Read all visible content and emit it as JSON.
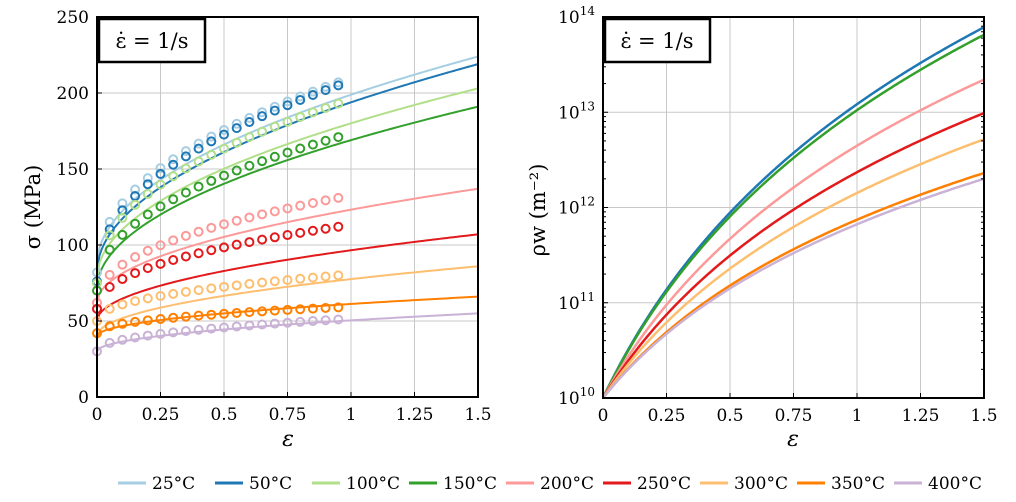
{
  "legend": {
    "entries": [
      {
        "label": "25°C",
        "color": "#a6cee3"
      },
      {
        "label": "50°C",
        "color": "#1f78b4"
      },
      {
        "label": "100°C",
        "color": "#b2df8a"
      },
      {
        "label": "150°C",
        "color": "#33a02c"
      },
      {
        "label": "200°C",
        "color": "#fb9a99"
      },
      {
        "label": "250°C",
        "color": "#e31a1c"
      },
      {
        "label": "300°C",
        "color": "#fdbf6f"
      },
      {
        "label": "350°C",
        "color": "#ff7f00"
      },
      {
        "label": "400°C",
        "color": "#cab2d6"
      }
    ]
  },
  "chart_data": [
    {
      "type": "line",
      "title": "",
      "annotation": "ε̇ = 1/s",
      "xlabel": "ε",
      "ylabel": "σ (MPa)",
      "xlim": [
        0,
        1.5
      ],
      "ylim": [
        0,
        250
      ],
      "xticks": [
        0,
        0.25,
        0.5,
        0.75,
        1,
        1.25,
        1.5
      ],
      "xtick_labels": [
        "0",
        "0.25",
        "0.5",
        "0.75",
        "1",
        "1.25",
        "1.5"
      ],
      "yticks": [
        0,
        50,
        100,
        150,
        200,
        250
      ],
      "ytick_labels": [
        "0",
        "50",
        "100",
        "150",
        "200",
        "250"
      ],
      "series": [
        {
          "name": "25°C",
          "color": "#a6cee3",
          "model": {
            "y0": 87,
            "y1": 224
          },
          "measured": {
            "y0": 82,
            "y1": 207
          }
        },
        {
          "name": "50°C",
          "color": "#1f78b4",
          "model": {
            "y0": 82,
            "y1": 219
          },
          "measured": {
            "y0": 76,
            "y1": 205
          }
        },
        {
          "name": "100°C",
          "color": "#b2df8a",
          "model": {
            "y0": 78,
            "y1": 203
          },
          "measured": {
            "y0": 75,
            "y1": 193
          }
        },
        {
          "name": "150°C",
          "color": "#33a02c",
          "model": {
            "y0": 71,
            "y1": 191
          },
          "measured": {
            "y0": 70,
            "y1": 171
          }
        },
        {
          "name": "200°C",
          "color": "#fb9a99",
          "model": {
            "y0": 62,
            "y1": 137
          },
          "measured": {
            "y0": 62,
            "y1": 131
          }
        },
        {
          "name": "250°C",
          "color": "#e31a1c",
          "model": {
            "y0": 50,
            "y1": 107
          },
          "measured": {
            "y0": 58,
            "y1": 112
          }
        },
        {
          "name": "300°C",
          "color": "#fdbf6f",
          "model": {
            "y0": 40,
            "y1": 86
          },
          "measured": {
            "y0": 50,
            "y1": 80
          }
        },
        {
          "name": "350°C",
          "color": "#ff7f00",
          "model": {
            "y0": 40,
            "y1": 66
          },
          "measured": {
            "y0": 42,
            "y1": 59
          }
        },
        {
          "name": "400°C",
          "color": "#cab2d6",
          "model": {
            "y0": 30,
            "y1": 55
          },
          "measured": {
            "y0": 30,
            "y1": 51
          }
        }
      ]
    },
    {
      "type": "line",
      "title": "",
      "annotation": "ε̇ = 1/s",
      "xlabel": "ε",
      "ylabel": "ρw (m⁻²)",
      "yscale": "log",
      "xlim": [
        0,
        1.5
      ],
      "ylim": [
        10000000000.0,
        100000000000000.0
      ],
      "xticks": [
        0,
        0.25,
        0.5,
        0.75,
        1,
        1.25,
        1.5
      ],
      "xtick_labels": [
        "0",
        "0.25",
        "0.5",
        "0.75",
        "1",
        "1.25",
        "1.5"
      ],
      "ytick_exponents": [
        10,
        11,
        12,
        13,
        14
      ],
      "series": [
        {
          "name": "50°C",
          "color": "#1f78b4",
          "end": 78000000000000.0
        },
        {
          "name": "150°C",
          "color": "#33a02c",
          "end": 65000000000000.0
        },
        {
          "name": "200°C",
          "color": "#fb9a99",
          "end": 22000000000000.0
        },
        {
          "name": "250°C",
          "color": "#e31a1c",
          "end": 9800000000000.0
        },
        {
          "name": "300°C",
          "color": "#fdbf6f",
          "end": 5200000000000.0
        },
        {
          "name": "350°C",
          "color": "#ff7f00",
          "end": 2300000000000.0
        },
        {
          "name": "400°C",
          "color": "#cab2d6",
          "end": 2000000000000.0
        }
      ]
    }
  ]
}
